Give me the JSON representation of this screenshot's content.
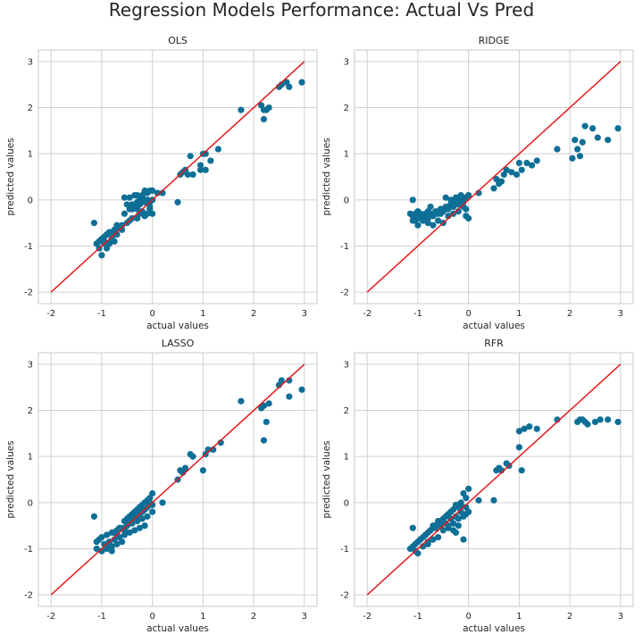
{
  "figure": {
    "suptitle": "Regression Models Performance: Actual Vs Pred"
  },
  "colors": {
    "points": "#0e6f96",
    "identity_line": "#e41a1c",
    "grid": "#d0d0d0",
    "background": "#ffffff",
    "spine": "#c8c8c8",
    "text": "#262626"
  },
  "chart_data": [
    {
      "type": "scatter",
      "title": "OLS",
      "xlabel": "actual values",
      "ylabel": "predicted values",
      "xlim": [
        -2.25,
        3.25
      ],
      "ylim": [
        -2.25,
        3.25
      ],
      "xticks": [
        -2,
        -1,
        0,
        1,
        2,
        3
      ],
      "yticks": [
        -2,
        -1,
        0,
        1,
        2,
        3
      ],
      "grid": true,
      "reference_line": {
        "from": [
          -2,
          -2
        ],
        "to": [
          3,
          3
        ]
      },
      "x": [
        2.95,
        2.65,
        2.5,
        2.55,
        2.2,
        2.3,
        2.15,
        2.25,
        2.7,
        2.2,
        1.75,
        1.3,
        1.05,
        1.0,
        0.95,
        1.15,
        0.75,
        1.05,
        0.95,
        0.8,
        0.65,
        0.6,
        0.55,
        0.5,
        0.7,
        0.6,
        0.2,
        0.1,
        0.0,
        -0.05,
        -0.1,
        -0.15,
        -0.2,
        -0.3,
        -0.35,
        -0.45,
        -0.55,
        -0.5,
        0.0,
        -0.05,
        -0.1,
        -0.2,
        -0.25,
        -0.3,
        -0.35,
        -0.4,
        -0.45,
        -0.3,
        -0.2,
        -0.1,
        -0.05,
        0.0,
        -0.15,
        -0.25,
        -0.3,
        -0.4,
        -0.45,
        -0.5,
        -0.6,
        -0.7,
        -0.75,
        -0.8,
        -0.85,
        -0.9,
        -0.95,
        -1.0,
        -1.05,
        -1.1,
        -1.15,
        -1.0,
        -0.9,
        -0.8,
        -0.7,
        -0.95,
        -0.85,
        -1.05,
        -0.75,
        -0.65,
        -0.7,
        -0.6,
        -0.9,
        -0.8,
        -1.0,
        -0.55,
        -0.4,
        -0.35,
        -0.25,
        -0.15,
        -0.1,
        -0.05,
        -1.1,
        -0.95
      ],
      "y": [
        2.55,
        2.55,
        2.45,
        2.5,
        1.95,
        2.0,
        2.05,
        1.95,
        2.45,
        1.75,
        1.95,
        1.1,
        1.0,
        1.0,
        0.75,
        0.85,
        0.95,
        0.65,
        0.65,
        0.55,
        0.65,
        0.6,
        0.55,
        -0.05,
        0.55,
        0.6,
        0.15,
        0.15,
        0.2,
        0.2,
        0.15,
        0.2,
        0.1,
        0.1,
        0.1,
        0.05,
        0.05,
        -0.1,
        0.0,
        -0.05,
        0.0,
        0.05,
        0.0,
        -0.05,
        -0.1,
        -0.1,
        -0.2,
        -0.2,
        -0.25,
        -0.3,
        -0.15,
        -0.3,
        -0.35,
        -0.3,
        -0.4,
        -0.4,
        -0.45,
        -0.5,
        -0.55,
        -0.6,
        -0.65,
        -0.7,
        -0.7,
        -0.75,
        -0.8,
        -0.85,
        -0.9,
        -0.95,
        -0.5,
        -1.2,
        -1.05,
        -0.85,
        -0.75,
        -0.9,
        -0.95,
        -1.05,
        -0.9,
        -0.6,
        -0.55,
        -0.65,
        -0.75,
        -0.8,
        -0.85,
        -0.3,
        -0.2,
        -0.15,
        -0.1,
        -0.05,
        0.0,
        -0.2,
        -0.95,
        -0.95
      ]
    },
    {
      "type": "scatter",
      "title": "RIDGE",
      "xlabel": "actual values",
      "ylabel": "predicted values",
      "xlim": [
        -2.25,
        3.25
      ],
      "ylim": [
        -2.25,
        3.25
      ],
      "xticks": [
        -2,
        -1,
        0,
        1,
        2,
        3
      ],
      "yticks": [
        -2,
        -1,
        0,
        1,
        2,
        3
      ],
      "grid": true,
      "reference_line": {
        "from": [
          -2,
          -2
        ],
        "to": [
          3,
          3
        ]
      },
      "x": [
        2.95,
        2.75,
        2.55,
        2.45,
        2.3,
        2.25,
        2.2,
        2.15,
        2.1,
        2.05,
        1.75,
        1.35,
        1.25,
        1.15,
        1.05,
        1.0,
        0.95,
        0.85,
        0.75,
        0.7,
        0.65,
        0.6,
        0.55,
        0.5,
        0.2,
        0.0,
        -0.05,
        -0.1,
        -0.15,
        -0.2,
        -0.25,
        -0.3,
        -0.35,
        -0.4,
        -0.45,
        -0.5,
        -0.55,
        -0.6,
        -0.65,
        -0.7,
        -0.75,
        -0.8,
        -0.85,
        -0.9,
        -0.95,
        -1.0,
        -1.05,
        -1.1,
        -1.15,
        -0.1,
        -0.2,
        -0.3,
        -0.4,
        -0.5,
        -0.6,
        -0.7,
        -0.8,
        -0.9,
        -1.0,
        -1.1,
        -0.15,
        -0.25,
        -0.35,
        -0.45,
        -0.55,
        -0.65,
        -0.75,
        -0.85,
        -0.95,
        -1.05,
        0.0,
        -0.05,
        -0.1,
        -0.2,
        -0.3,
        -0.4,
        -0.5,
        -0.6,
        -0.7,
        -0.8,
        -0.9,
        -1.0,
        -0.05,
        -0.15,
        -0.25,
        -0.35,
        -0.45,
        -1.1,
        -0.75,
        -0.55
      ],
      "y": [
        1.55,
        1.3,
        1.35,
        1.55,
        1.6,
        1.25,
        0.95,
        1.1,
        1.3,
        0.9,
        1.1,
        0.85,
        0.75,
        0.8,
        0.65,
        0.8,
        0.55,
        0.6,
        0.65,
        0.55,
        0.4,
        0.35,
        0.45,
        0.25,
        0.15,
        0.1,
        0.05,
        0.05,
        0.1,
        0.05,
        0.0,
        -0.05,
        -0.1,
        -0.15,
        -0.2,
        -0.25,
        -0.3,
        -0.25,
        -0.3,
        -0.35,
        -0.3,
        -0.25,
        -0.3,
        -0.35,
        -0.3,
        -0.25,
        -0.3,
        -0.35,
        -0.3,
        -0.05,
        -0.1,
        -0.15,
        -0.2,
        -0.25,
        -0.3,
        -0.35,
        -0.4,
        -0.45,
        -0.4,
        -0.45,
        0.0,
        -0.05,
        -0.1,
        -0.15,
        -0.2,
        -0.25,
        -0.3,
        -0.35,
        -0.4,
        -0.45,
        -0.4,
        -0.2,
        -0.15,
        -0.25,
        -0.3,
        -0.35,
        -0.5,
        -0.45,
        -0.55,
        -0.5,
        -0.45,
        -0.55,
        -0.35,
        -0.05,
        0.05,
        0.0,
        0.05,
        0.0,
        -0.15,
        -0.2
      ]
    },
    {
      "type": "scatter",
      "title": "LASSO",
      "xlabel": "actual values",
      "ylabel": "predicted values",
      "xlim": [
        -2.25,
        3.25
      ],
      "ylim": [
        -2.25,
        3.25
      ],
      "xticks": [
        -2,
        -1,
        0,
        1,
        2,
        3
      ],
      "yticks": [
        -2,
        -1,
        0,
        1,
        2,
        3
      ],
      "grid": true,
      "reference_line": {
        "from": [
          -2,
          -2
        ],
        "to": [
          3,
          3
        ]
      },
      "x": [
        2.95,
        2.7,
        2.55,
        2.5,
        2.3,
        2.2,
        2.15,
        2.25,
        2.7,
        2.2,
        1.75,
        1.35,
        1.2,
        1.1,
        1.05,
        1.0,
        0.8,
        0.75,
        0.65,
        0.6,
        0.55,
        0.5,
        0.2,
        0.0,
        -0.05,
        -0.1,
        -0.15,
        -0.2,
        -0.25,
        -0.3,
        -0.35,
        -0.4,
        -0.45,
        -0.5,
        -0.55,
        0.0,
        -0.05,
        -0.1,
        -0.15,
        -0.2,
        -0.25,
        -0.3,
        -0.35,
        -0.4,
        -0.45,
        -0.5,
        -0.6,
        -0.7,
        -0.8,
        -0.9,
        -1.0,
        -1.05,
        -1.1,
        -1.15,
        -0.95,
        -0.85,
        -0.75,
        -0.65,
        -0.55,
        -0.45,
        -0.35,
        -0.25,
        -0.15,
        -1.0,
        -0.9,
        -0.8,
        -0.7,
        -0.6,
        -0.5,
        -0.4,
        -0.3,
        -0.2,
        -0.1,
        0.0,
        -0.7,
        -0.8,
        -0.9,
        -1.0,
        -1.1,
        -0.55,
        -0.65,
        -0.75,
        -0.85
      ],
      "y": [
        2.45,
        2.65,
        2.65,
        2.55,
        2.15,
        2.1,
        2.05,
        1.75,
        2.3,
        1.35,
        2.2,
        1.3,
        1.15,
        1.15,
        1.05,
        0.7,
        1.0,
        1.05,
        0.75,
        0.65,
        0.7,
        0.5,
        0.0,
        0.2,
        0.1,
        0.05,
        0.0,
        -0.05,
        -0.1,
        -0.15,
        -0.2,
        -0.25,
        -0.3,
        -0.35,
        -0.4,
        -0.05,
        0.0,
        -0.1,
        -0.15,
        -0.2,
        -0.25,
        -0.3,
        -0.35,
        -0.4,
        -0.45,
        -0.5,
        -0.55,
        -0.6,
        -0.65,
        -0.7,
        -0.75,
        -0.8,
        -0.85,
        -0.3,
        -0.9,
        -0.85,
        -0.8,
        -0.75,
        -0.7,
        -0.65,
        -0.6,
        -0.55,
        -0.5,
        -1.05,
        -1.0,
        -0.95,
        -0.9,
        -0.85,
        -0.5,
        -0.45,
        -0.4,
        -0.35,
        -0.3,
        -0.2,
        -0.7,
        -1.05,
        -0.95,
        -1.05,
        -1.0,
        -0.6,
        -0.55,
        -0.65,
        -0.9
      ]
    },
    {
      "type": "scatter",
      "title": "RFR",
      "xlabel": "actual values",
      "ylabel": "predicted values",
      "xlim": [
        -2.25,
        3.25
      ],
      "ylim": [
        -2.25,
        3.25
      ],
      "xticks": [
        -2,
        -1,
        0,
        1,
        2,
        3
      ],
      "yticks": [
        -2,
        -1,
        0,
        1,
        2,
        3
      ],
      "grid": true,
      "reference_line": {
        "from": [
          -2,
          -2
        ],
        "to": [
          3,
          3
        ]
      },
      "x": [
        2.95,
        2.75,
        2.6,
        2.5,
        2.35,
        2.3,
        2.25,
        2.2,
        2.15,
        1.75,
        1.35,
        1.2,
        1.1,
        1.05,
        1.0,
        1.0,
        0.8,
        0.75,
        0.65,
        0.6,
        0.55,
        0.5,
        0.2,
        0.0,
        -0.05,
        -0.1,
        -0.15,
        -0.2,
        -0.25,
        -0.3,
        -0.35,
        -0.4,
        -0.45,
        -0.5,
        -0.55,
        -0.6,
        -0.65,
        -0.7,
        -0.75,
        -0.8,
        -0.85,
        -0.9,
        -0.95,
        -1.0,
        -1.05,
        -1.1,
        -1.15,
        -0.1,
        -0.2,
        -0.3,
        -0.4,
        -0.5,
        -0.6,
        -0.7,
        -0.8,
        -0.9,
        -1.0,
        -0.05,
        -0.15,
        -0.25,
        -0.35,
        -0.45,
        -0.55,
        -0.65,
        -0.75,
        -0.85,
        -0.95,
        -1.05,
        0.0,
        -0.1,
        -0.2,
        -0.3,
        -0.4,
        -0.5,
        -0.6,
        -0.7,
        -0.8,
        -1.1,
        -0.15,
        -0.25,
        -0.05
      ],
      "y": [
        1.75,
        1.8,
        1.8,
        1.75,
        1.7,
        1.75,
        1.8,
        1.8,
        1.75,
        1.8,
        1.6,
        1.65,
        1.6,
        0.7,
        1.2,
        1.55,
        0.8,
        0.85,
        0.7,
        0.75,
        0.7,
        0.05,
        0.05,
        0.3,
        0.1,
        0.2,
        0.0,
        -0.1,
        -0.05,
        -0.15,
        -0.2,
        -0.25,
        -0.3,
        -0.35,
        -0.4,
        -0.45,
        -0.5,
        -0.55,
        -0.6,
        -0.65,
        -0.7,
        -0.75,
        -0.8,
        -0.85,
        -0.9,
        -0.95,
        -1.0,
        -0.8,
        -0.5,
        -0.6,
        -0.55,
        -0.45,
        -0.4,
        -0.5,
        -0.85,
        -0.95,
        -1.1,
        -0.1,
        -0.2,
        -0.3,
        -0.35,
        -0.45,
        -0.5,
        -0.55,
        -0.6,
        -0.7,
        -0.8,
        -1.05,
        -0.2,
        -0.3,
        -0.35,
        -0.45,
        -0.5,
        -0.6,
        -0.75,
        -0.8,
        -0.9,
        -0.55,
        -0.05,
        -0.65,
        -0.25
      ]
    }
  ]
}
